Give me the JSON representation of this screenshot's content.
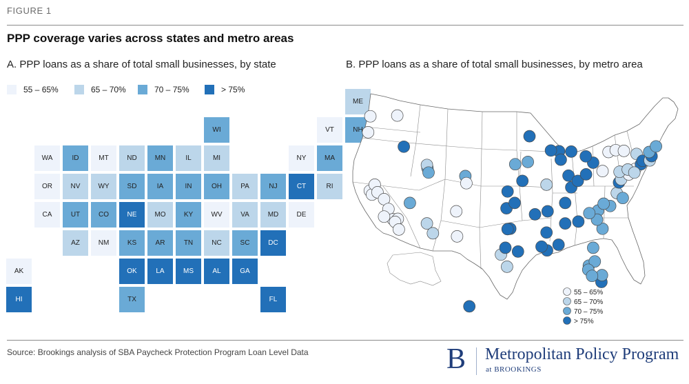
{
  "figure": {
    "label": "FIGURE 1",
    "title": "PPP coverage varies across states and metro areas",
    "panel_a_title": "A. PPP loans as a share of total small businesses, by state",
    "panel_b_title": "B. PPP loans as a share of total small businesses, by metro area"
  },
  "colors": {
    "c1": "#eef3fb",
    "c2": "#bcd6ea",
    "c3": "#6aaad6",
    "c4": "#2270b8"
  },
  "legend": [
    {
      "label": "55 – 65%",
      "cls": "c1"
    },
    {
      "label": "65 – 70%",
      "cls": "c2"
    },
    {
      "label": "70 – 75%",
      "cls": "c3"
    },
    {
      "label": "> 75%",
      "cls": "c4"
    }
  ],
  "states": [
    {
      "abbr": "ME",
      "col": 11,
      "row": 0,
      "cls": "c2"
    },
    {
      "abbr": "WI",
      "col": 6,
      "row": 1,
      "cls": "c3"
    },
    {
      "abbr": "VT",
      "col": 10,
      "row": 1,
      "cls": "c1"
    },
    {
      "abbr": "NH",
      "col": 11,
      "row": 1,
      "cls": "c3"
    },
    {
      "abbr": "WA",
      "col": 0,
      "row": 2,
      "cls": "c1"
    },
    {
      "abbr": "ID",
      "col": 1,
      "row": 2,
      "cls": "c3"
    },
    {
      "abbr": "MT",
      "col": 2,
      "row": 2,
      "cls": "c1"
    },
    {
      "abbr": "ND",
      "col": 3,
      "row": 2,
      "cls": "c2"
    },
    {
      "abbr": "MN",
      "col": 4,
      "row": 2,
      "cls": "c3"
    },
    {
      "abbr": "IL",
      "col": 5,
      "row": 2,
      "cls": "c2"
    },
    {
      "abbr": "MI",
      "col": 6,
      "row": 2,
      "cls": "c2"
    },
    {
      "abbr": "NY",
      "col": 9,
      "row": 2,
      "cls": "c1"
    },
    {
      "abbr": "MA",
      "col": 10,
      "row": 2,
      "cls": "c3"
    },
    {
      "abbr": "OR",
      "col": 0,
      "row": 3,
      "cls": "c1"
    },
    {
      "abbr": "NV",
      "col": 1,
      "row": 3,
      "cls": "c2"
    },
    {
      "abbr": "WY",
      "col": 2,
      "row": 3,
      "cls": "c2"
    },
    {
      "abbr": "SD",
      "col": 3,
      "row": 3,
      "cls": "c3"
    },
    {
      "abbr": "IA",
      "col": 4,
      "row": 3,
      "cls": "c3"
    },
    {
      "abbr": "IN",
      "col": 5,
      "row": 3,
      "cls": "c3"
    },
    {
      "abbr": "OH",
      "col": 6,
      "row": 3,
      "cls": "c3"
    },
    {
      "abbr": "PA",
      "col": 7,
      "row": 3,
      "cls": "c2"
    },
    {
      "abbr": "NJ",
      "col": 8,
      "row": 3,
      "cls": "c3"
    },
    {
      "abbr": "CT",
      "col": 9,
      "row": 3,
      "cls": "c4"
    },
    {
      "abbr": "RI",
      "col": 10,
      "row": 3,
      "cls": "c2"
    },
    {
      "abbr": "CA",
      "col": 0,
      "row": 4,
      "cls": "c1"
    },
    {
      "abbr": "UT",
      "col": 1,
      "row": 4,
      "cls": "c3"
    },
    {
      "abbr": "CO",
      "col": 2,
      "row": 4,
      "cls": "c3"
    },
    {
      "abbr": "NE",
      "col": 3,
      "row": 4,
      "cls": "c4"
    },
    {
      "abbr": "MO",
      "col": 4,
      "row": 4,
      "cls": "c2"
    },
    {
      "abbr": "KY",
      "col": 5,
      "row": 4,
      "cls": "c3"
    },
    {
      "abbr": "WV",
      "col": 6,
      "row": 4,
      "cls": "c1"
    },
    {
      "abbr": "VA",
      "col": 7,
      "row": 4,
      "cls": "c2"
    },
    {
      "abbr": "MD",
      "col": 8,
      "row": 4,
      "cls": "c2"
    },
    {
      "abbr": "DE",
      "col": 9,
      "row": 4,
      "cls": "c1"
    },
    {
      "abbr": "AZ",
      "col": 1,
      "row": 5,
      "cls": "c2"
    },
    {
      "abbr": "NM",
      "col": 2,
      "row": 5,
      "cls": "c1"
    },
    {
      "abbr": "KS",
      "col": 3,
      "row": 5,
      "cls": "c3"
    },
    {
      "abbr": "AR",
      "col": 4,
      "row": 5,
      "cls": "c3"
    },
    {
      "abbr": "TN",
      "col": 5,
      "row": 5,
      "cls": "c3"
    },
    {
      "abbr": "NC",
      "col": 6,
      "row": 5,
      "cls": "c2"
    },
    {
      "abbr": "SC",
      "col": 7,
      "row": 5,
      "cls": "c3"
    },
    {
      "abbr": "DC",
      "col": 8,
      "row": 5,
      "cls": "c4"
    },
    {
      "abbr": "AK",
      "col": -1,
      "row": 6,
      "cls": "c1"
    },
    {
      "abbr": "OK",
      "col": 3,
      "row": 6,
      "cls": "c4"
    },
    {
      "abbr": "LA",
      "col": 4,
      "row": 6,
      "cls": "c4"
    },
    {
      "abbr": "MS",
      "col": 5,
      "row": 6,
      "cls": "c4"
    },
    {
      "abbr": "AL",
      "col": 6,
      "row": 6,
      "cls": "c4"
    },
    {
      "abbr": "GA",
      "col": 7,
      "row": 6,
      "cls": "c4"
    },
    {
      "abbr": "HI",
      "col": -1,
      "row": 7,
      "cls": "c4"
    },
    {
      "abbr": "TX",
      "col": 3,
      "row": 7,
      "cls": "c3"
    },
    {
      "abbr": "FL",
      "col": 8,
      "row": 7,
      "cls": "c4"
    }
  ],
  "metros": [
    {
      "lon": -122.3,
      "lat": 47.6,
      "cls": "c1"
    },
    {
      "lon": -117.4,
      "lat": 47.7,
      "cls": "c1"
    },
    {
      "lon": -122.7,
      "lat": 45.5,
      "cls": "c1"
    },
    {
      "lon": -116.2,
      "lat": 43.6,
      "cls": "c4"
    },
    {
      "lon": -122.4,
      "lat": 37.8,
      "cls": "c1"
    },
    {
      "lon": -122.0,
      "lat": 37.3,
      "cls": "c1"
    },
    {
      "lon": -121.5,
      "lat": 38.6,
      "cls": "c1"
    },
    {
      "lon": -121.0,
      "lat": 37.6,
      "cls": "c1"
    },
    {
      "lon": -119.8,
      "lat": 36.7,
      "cls": "c1"
    },
    {
      "lon": -119.0,
      "lat": 35.4,
      "cls": "c1"
    },
    {
      "lon": -118.2,
      "lat": 34.05,
      "cls": "c1"
    },
    {
      "lon": -117.3,
      "lat": 34.1,
      "cls": "c1"
    },
    {
      "lon": -117.8,
      "lat": 33.7,
      "cls": "c1"
    },
    {
      "lon": -117.1,
      "lat": 32.7,
      "cls": "c1"
    },
    {
      "lon": -119.8,
      "lat": 34.4,
      "cls": "c1"
    },
    {
      "lon": -115.1,
      "lat": 36.2,
      "cls": "c3"
    },
    {
      "lon": -111.9,
      "lat": 40.8,
      "cls": "c3"
    },
    {
      "lon": -112.0,
      "lat": 41.2,
      "cls": "c2"
    },
    {
      "lon": -111.7,
      "lat": 40.2,
      "cls": "c3"
    },
    {
      "lon": -112.0,
      "lat": 33.5,
      "cls": "c2"
    },
    {
      "lon": -110.9,
      "lat": 32.2,
      "cls": "c2"
    },
    {
      "lon": -104.99,
      "lat": 39.74,
      "cls": "c3"
    },
    {
      "lon": -104.8,
      "lat": 38.8,
      "cls": "c1"
    },
    {
      "lon": -106.65,
      "lat": 35.1,
      "cls": "c1"
    },
    {
      "lon": -106.5,
      "lat": 31.8,
      "cls": "c1"
    },
    {
      "lon": -96.8,
      "lat": 32.8,
      "cls": "c4"
    },
    {
      "lon": -97.3,
      "lat": 32.75,
      "cls": "c4"
    },
    {
      "lon": -95.4,
      "lat": 29.8,
      "cls": "c4"
    },
    {
      "lon": -98.5,
      "lat": 29.4,
      "cls": "c2"
    },
    {
      "lon": -97.7,
      "lat": 30.3,
      "cls": "c4"
    },
    {
      "lon": -97.4,
      "lat": 27.8,
      "cls": "c2"
    },
    {
      "lon": -97.5,
      "lat": 35.5,
      "cls": "c4"
    },
    {
      "lon": -96.0,
      "lat": 36.2,
      "cls": "c4"
    },
    {
      "lon": -97.3,
      "lat": 37.7,
      "cls": "c4"
    },
    {
      "lon": -94.6,
      "lat": 39.1,
      "cls": "c4"
    },
    {
      "lon": -95.9,
      "lat": 41.3,
      "cls": "c3"
    },
    {
      "lon": -93.6,
      "lat": 41.6,
      "cls": "c3"
    },
    {
      "lon": -93.3,
      "lat": 44.98,
      "cls": "c4"
    },
    {
      "lon": -90.2,
      "lat": 38.6,
      "cls": "c2"
    },
    {
      "lon": -92.3,
      "lat": 34.7,
      "cls": "c4"
    },
    {
      "lon": -90.0,
      "lat": 35.1,
      "cls": "c4"
    },
    {
      "lon": -90.1,
      "lat": 29.95,
      "cls": "c4"
    },
    {
      "lon": -91.1,
      "lat": 30.45,
      "cls": "c4"
    },
    {
      "lon": -90.2,
      "lat": 32.3,
      "cls": "c4"
    },
    {
      "lon": -87.9,
      "lat": 43.0,
      "cls": "c4"
    },
    {
      "lon": -87.6,
      "lat": 41.9,
      "cls": "c4"
    },
    {
      "lon": -89.4,
      "lat": 43.1,
      "cls": "c4"
    },
    {
      "lon": -86.2,
      "lat": 39.8,
      "cls": "c4"
    },
    {
      "lon": -85.7,
      "lat": 38.25,
      "cls": "c4"
    },
    {
      "lon": -84.5,
      "lat": 39.1,
      "cls": "c4"
    },
    {
      "lon": -83.0,
      "lat": 39.96,
      "cls": "c4"
    },
    {
      "lon": -81.7,
      "lat": 41.5,
      "cls": "c4"
    },
    {
      "lon": -83.05,
      "lat": 42.33,
      "cls": "c4"
    },
    {
      "lon": -85.7,
      "lat": 42.96,
      "cls": "c4"
    },
    {
      "lon": -86.8,
      "lat": 36.2,
      "cls": "c4"
    },
    {
      "lon": -84.4,
      "lat": 33.75,
      "cls": "c4"
    },
    {
      "lon": -86.8,
      "lat": 33.5,
      "cls": "c4"
    },
    {
      "lon": -88.0,
      "lat": 30.7,
      "cls": "c4"
    },
    {
      "lon": -81.7,
      "lat": 30.3,
      "cls": "c3"
    },
    {
      "lon": -82.5,
      "lat": 27.95,
      "cls": "c3"
    },
    {
      "lon": -81.4,
      "lat": 28.5,
      "cls": "c3"
    },
    {
      "lon": -80.2,
      "lat": 25.8,
      "cls": "c4"
    },
    {
      "lon": -80.1,
      "lat": 26.7,
      "cls": "c3"
    },
    {
      "lon": -82.6,
      "lat": 27.4,
      "cls": "c3"
    },
    {
      "lon": -81.9,
      "lat": 26.6,
      "cls": "c3"
    },
    {
      "lon": -80.8,
      "lat": 35.2,
      "cls": "c3"
    },
    {
      "lon": -78.6,
      "lat": 35.8,
      "cls": "c3"
    },
    {
      "lon": -79.8,
      "lat": 36.1,
      "cls": "c3"
    },
    {
      "lon": -80.0,
      "lat": 32.8,
      "cls": "c3"
    },
    {
      "lon": -81.0,
      "lat": 34.0,
      "cls": "c3"
    },
    {
      "lon": -82.4,
      "lat": 34.85,
      "cls": "c3"
    },
    {
      "lon": -77.4,
      "lat": 37.5,
      "cls": "c2"
    },
    {
      "lon": -76.3,
      "lat": 36.85,
      "cls": "c3"
    },
    {
      "lon": -77.0,
      "lat": 38.9,
      "cls": "c4"
    },
    {
      "lon": -76.6,
      "lat": 39.3,
      "cls": "c2"
    },
    {
      "lon": -75.2,
      "lat": 39.95,
      "cls": "c1"
    },
    {
      "lon": -76.9,
      "lat": 40.3,
      "cls": "c2"
    },
    {
      "lon": -80.0,
      "lat": 40.4,
      "cls": "c1"
    },
    {
      "lon": -74.0,
      "lat": 40.7,
      "cls": "c1"
    },
    {
      "lon": -78.9,
      "lat": 42.9,
      "cls": "c1"
    },
    {
      "lon": -77.6,
      "lat": 43.15,
      "cls": "c1"
    },
    {
      "lon": -76.1,
      "lat": 43.05,
      "cls": "c1"
    },
    {
      "lon": -73.8,
      "lat": 42.65,
      "cls": "c2"
    },
    {
      "lon": -73.0,
      "lat": 41.3,
      "cls": "c4"
    },
    {
      "lon": -72.7,
      "lat": 41.75,
      "cls": "c4"
    },
    {
      "lon": -71.4,
      "lat": 41.8,
      "cls": "c2"
    },
    {
      "lon": -71.06,
      "lat": 42.36,
      "cls": "c4"
    },
    {
      "lon": -71.5,
      "lat": 42.9,
      "cls": "c3"
    },
    {
      "lon": -70.25,
      "lat": 43.65,
      "cls": "c3"
    },
    {
      "lon": -75.4,
      "lat": 40.6,
      "cls": "c2"
    },
    {
      "lon": -74.2,
      "lat": 40.2,
      "cls": "c2"
    },
    {
      "lon": -157.9,
      "lat": 21.3,
      "cls": "c4"
    }
  ],
  "metro_legend": [
    {
      "label": "55 – 65%",
      "cls": "c1"
    },
    {
      "label": "65 – 70%",
      "cls": "c2"
    },
    {
      "label": "70 – 75%",
      "cls": "c3"
    },
    {
      "label": "> 75%",
      "cls": "c4"
    }
  ],
  "footer": {
    "source": "Source: Brookings analysis of SBA Paycheck Protection Program Loan Level Data",
    "logo_letter": "B",
    "logo_name": "Metropolitan Policy Program",
    "logo_sub": "at BROOKINGS"
  }
}
